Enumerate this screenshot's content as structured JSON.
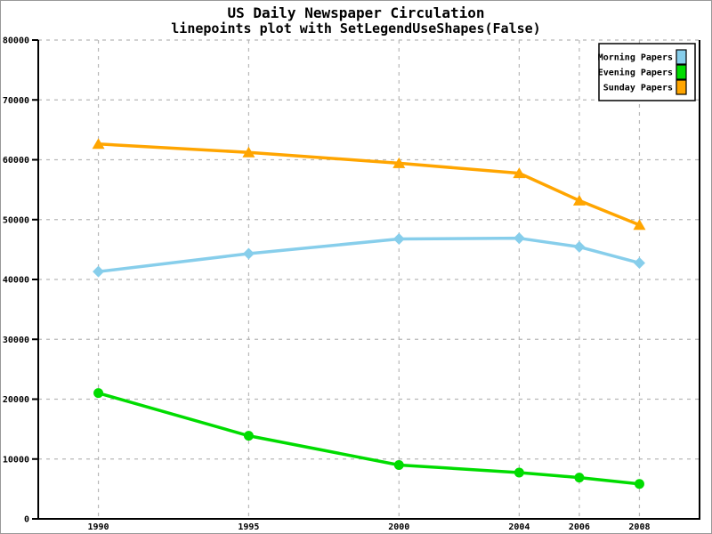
{
  "chart_data": {
    "type": "line",
    "title": "US Daily Newspaper Circulation",
    "subtitle": "linepoints plot with SetLegendUseShapes(False)",
    "x": [
      1990,
      1995,
      2000,
      2004,
      2006,
      2008
    ],
    "xticks": [
      1990,
      1995,
      2000,
      2004,
      2006,
      2008
    ],
    "xtick_labels": [
      "1990",
      "1995",
      "2000",
      "2004",
      "2006",
      "2008"
    ],
    "yticks": [
      0,
      10000,
      20000,
      30000,
      40000,
      50000,
      60000,
      70000,
      80000
    ],
    "ytick_labels": [
      "0",
      "10000",
      "20000",
      "30000",
      "40000",
      "50000",
      "60000",
      "70000",
      "80000"
    ],
    "xlim": [
      1988,
      2010
    ],
    "ylim": [
      0,
      80000
    ],
    "grid": true,
    "legend_position": "top-right",
    "series": [
      {
        "name": "Morning Papers",
        "marker": "diamond",
        "color": "#87CEEB",
        "values": [
          41311,
          44310,
          46772,
          46887,
          45441,
          42757
        ]
      },
      {
        "name": "Evening Papers",
        "marker": "circle",
        "color": "#00DC00",
        "values": [
          21017,
          13883,
          9000,
          7738,
          6900,
          5840
        ]
      },
      {
        "name": "Sunday Papers",
        "marker": "triangle-up",
        "color": "#FFA500",
        "values": [
          62634,
          61229,
          59421,
          57754,
          53180,
          49115
        ]
      }
    ]
  },
  "colors": {
    "grid": "#b8b8b8",
    "axis": "#000000",
    "background": "#ffffff",
    "frame_border": "#999999",
    "legend_border": "#000000"
  }
}
